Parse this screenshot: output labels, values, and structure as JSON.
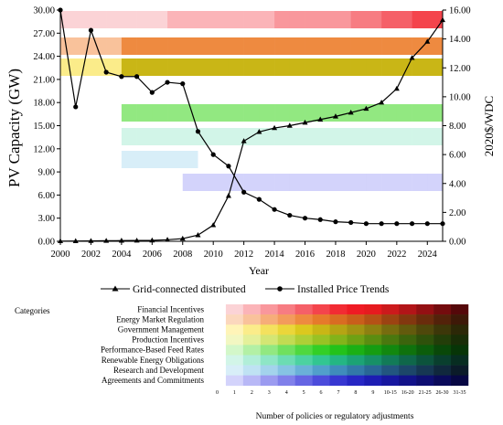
{
  "chart_data": [
    {
      "type": "line",
      "ylabel": "PV Capacity (GW)",
      "y2label": "2020$/WDC",
      "xlabel": "Year",
      "xlim": [
        2000,
        2025
      ],
      "ylim": [
        0,
        30
      ],
      "y2lim": [
        0,
        16
      ],
      "x_ticks": [
        "2000",
        "2002",
        "2004",
        "2006",
        "2008",
        "2010",
        "2012",
        "2014",
        "2016",
        "2018",
        "2020",
        "2022",
        "2024"
      ],
      "y_ticks": [
        "0.00",
        "3.00",
        "6.00",
        "9.00",
        "12.00",
        "15.00",
        "18.00",
        "21.00",
        "24.00",
        "27.00",
        "30.00"
      ],
      "y2_ticks": [
        "0.00",
        "2.00",
        "4.00",
        "6.00",
        "8.00",
        "10.00",
        "12.00",
        "14.00",
        "16.00"
      ],
      "legend_position": "bottom",
      "series": [
        {
          "name": "Grid-connected distributed",
          "axis": "left",
          "marker": "triangle",
          "x": [
            2000,
            2001,
            2002,
            2003,
            2004,
            2005,
            2006,
            2007,
            2008,
            2009,
            2010,
            2011,
            2012,
            2013,
            2014,
            2015,
            2016,
            2017,
            2018,
            2019,
            2020,
            2021,
            2022,
            2023,
            2024,
            2025
          ],
          "y": [
            0.02,
            0.03,
            0.05,
            0.07,
            0.09,
            0.1,
            0.12,
            0.2,
            0.35,
            0.8,
            2.1,
            5.9,
            13.0,
            14.2,
            14.7,
            15.0,
            15.4,
            15.8,
            16.2,
            16.7,
            17.2,
            18.0,
            19.8,
            23.8,
            25.9,
            28.7
          ]
        },
        {
          "name": "Installed Price Trends",
          "axis": "right",
          "marker": "circle",
          "x": [
            2000,
            2001,
            2002,
            2003,
            2004,
            2005,
            2006,
            2007,
            2008,
            2009,
            2010,
            2011,
            2012,
            2013,
            2014,
            2015,
            2016,
            2017,
            2018,
            2019,
            2020,
            2021,
            2022,
            2023,
            2024,
            2025
          ],
          "y": [
            16.0,
            9.3,
            14.6,
            11.7,
            11.4,
            11.4,
            10.3,
            11.0,
            10.9,
            7.6,
            6.0,
            5.2,
            3.4,
            2.9,
            2.2,
            1.8,
            1.6,
            1.5,
            1.35,
            1.3,
            1.22,
            1.22,
            1.22,
            1.22,
            1.22,
            1.22
          ]
        }
      ],
      "policy_bars": [
        {
          "category": "Financial Incentives",
          "start": 2000,
          "end": 2025,
          "levels": [
            1,
            1,
            1,
            1,
            1,
            1,
            1,
            2,
            2,
            2,
            2,
            2,
            2,
            2,
            3,
            3,
            3,
            3,
            3,
            4,
            4,
            5,
            5,
            6,
            6
          ]
        },
        {
          "category": "Energy Market Regulation",
          "start": 2000,
          "end": 2025,
          "levels": [
            2,
            2,
            2,
            2,
            5,
            5,
            5,
            5,
            5,
            5,
            5,
            5,
            5,
            5,
            5,
            5,
            5,
            5,
            5,
            5,
            5,
            5,
            5,
            5,
            5
          ]
        },
        {
          "category": "Government Management",
          "start": 2000,
          "end": 2025,
          "levels": [
            2,
            2,
            2,
            2,
            6,
            6,
            6,
            6,
            6,
            6,
            6,
            6,
            6,
            6,
            6,
            6,
            6,
            6,
            6,
            6,
            6,
            6,
            6,
            6,
            6
          ]
        },
        {
          "category": "Performance-Based Feed Rates",
          "start": 2004,
          "end": 2025,
          "levels": [
            3,
            3,
            3,
            3,
            3,
            3,
            3,
            3,
            3,
            3,
            3,
            3,
            3,
            3,
            3,
            3,
            3,
            3,
            3,
            3,
            3
          ]
        },
        {
          "category": "Renewable Energy Obligations",
          "start": 2004,
          "end": 2025,
          "levels": [
            1,
            1,
            1,
            1,
            1,
            1,
            1,
            1,
            1,
            1,
            1,
            1,
            1,
            1,
            1,
            1,
            1,
            1,
            1,
            1,
            1
          ]
        },
        {
          "category": "Research and Development",
          "start": 2004,
          "end": 2025,
          "levels": [
            1,
            1,
            1,
            1,
            1,
            0,
            0,
            0,
            0,
            0,
            0,
            0,
            0,
            0,
            0,
            0,
            0,
            0,
            0,
            0,
            0
          ]
        },
        {
          "category": "Agreements and Commitments",
          "start": 2008,
          "end": 2025,
          "levels": [
            1,
            1,
            1,
            1,
            1,
            1,
            1,
            1,
            1,
            1,
            1,
            1,
            1,
            1,
            1,
            1,
            1
          ]
        }
      ]
    },
    {
      "type": "heatmap",
      "title": "Categories",
      "rows": [
        "Financial Incentives",
        "Energy Market Regulation",
        "Government Management",
        "Production Incentives",
        "Performance-Based Feed Rates",
        "Renewable Energy Obligations",
        "Research and Development",
        "Agreements and Commitments"
      ],
      "columns": [
        "0",
        "1",
        "2",
        "3",
        "4",
        "5",
        "6",
        "7",
        "8",
        "9",
        "10-15",
        "16-20",
        "21-25",
        "26-30",
        "31-35"
      ],
      "xlabel": "Number of policies or regulatory adjustments",
      "colors": [
        [
          "#ffffff",
          "#fbd3d6",
          "#fbb4b8",
          "#f9979c",
          "#f77c82",
          "#f56068",
          "#f4444c",
          "#f22b33",
          "#ef1b24",
          "#e61b1f",
          "#cc1a1c",
          "#b21518",
          "#941013",
          "#740c0e",
          "#55080a"
        ],
        [
          "#ffffff",
          "#fbd7bd",
          "#f9c29b",
          "#f6ad79",
          "#f39b5c",
          "#ee8a40",
          "#e67a2b",
          "#d96c22",
          "#c95e1b",
          "#b55116",
          "#9c4312",
          "#82370f",
          "#6a2c0c",
          "#53220a",
          "#3e1908"
        ],
        [
          "#ffffff",
          "#fff4b8",
          "#fbec8a",
          "#f4e15e",
          "#ebd63a",
          "#dcc81e",
          "#c9b616",
          "#b5a414",
          "#a19313",
          "#8d8011",
          "#776c0f",
          "#635a0d",
          "#4f480b",
          "#3d3709",
          "#2c2807"
        ],
        [
          "#ffffff",
          "#f2f7c2",
          "#e4f09a",
          "#d4e674",
          "#c2db52",
          "#aecf36",
          "#99c224",
          "#83b31a",
          "#6ea114",
          "#5b8d11",
          "#4a780f",
          "#3c640d",
          "#2f510b",
          "#233e09",
          "#192d07"
        ],
        [
          "#ffffff",
          "#d3f7c9",
          "#b3f0a5",
          "#92e881",
          "#70e05e",
          "#4fd83f",
          "#33cf26",
          "#23c21a",
          "#1bb015",
          "#169d12",
          "#12880f",
          "#0f720d",
          "#0c5d0b",
          "#094809",
          "#073507"
        ],
        [
          "#ffffff",
          "#d2f5e8",
          "#b1eed8",
          "#8ee6c6",
          "#6cdcb3",
          "#4cd2a1",
          "#32c691",
          "#24b683",
          "#1ca375",
          "#179067",
          "#127b58",
          "#0f674a",
          "#0c533c",
          "#093f2e",
          "#072d21"
        ],
        [
          "#ffffff",
          "#d8eef8",
          "#bfe2f3",
          "#a3d3ec",
          "#86c3e3",
          "#6ab1d8",
          "#519fcb",
          "#3f8cbb",
          "#3279a8",
          "#296795",
          "#22567f",
          "#1c4669",
          "#163753",
          "#10283d",
          "#0b1b29"
        ],
        [
          "#ffffff",
          "#d3d3fb",
          "#b8b8f6",
          "#9b9bf0",
          "#8080ea",
          "#6565e3",
          "#4c4cdb",
          "#3737d1",
          "#2727c4",
          "#1d1db3",
          "#17179f",
          "#121289",
          "#0e0e72",
          "#0a0a5a",
          "#070743"
        ]
      ]
    }
  ]
}
